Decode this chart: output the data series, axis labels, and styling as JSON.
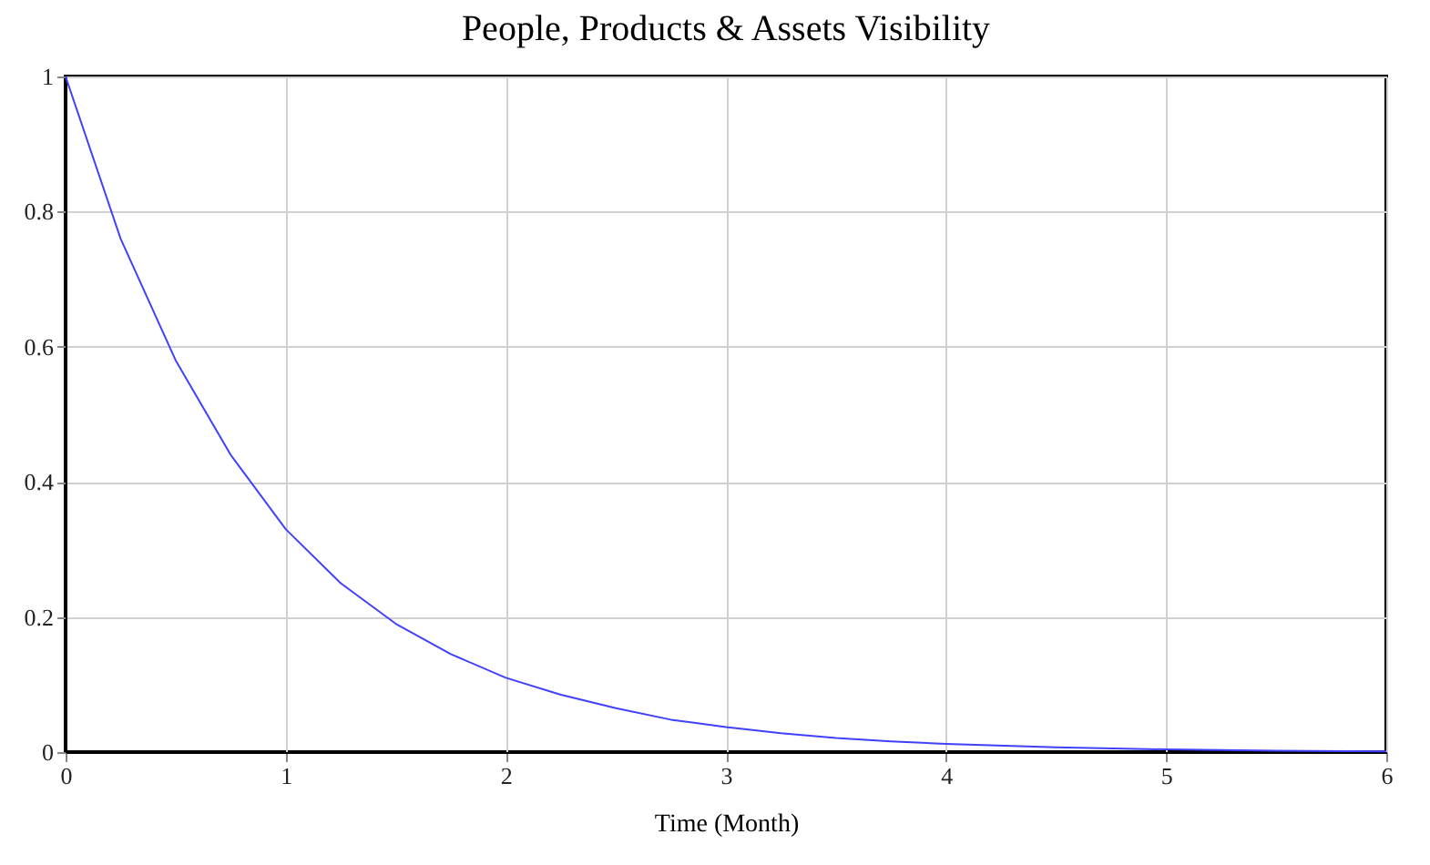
{
  "chart_data": {
    "type": "line",
    "title": "People, Products & Assets Visibility",
    "xlabel": "Time (Month)",
    "x": [
      0,
      0.25,
      0.5,
      0.75,
      1,
      1.25,
      1.5,
      1.75,
      2,
      2.25,
      2.5,
      2.75,
      3,
      3.25,
      3.5,
      3.75,
      4,
      4.5,
      5,
      5.5,
      6
    ],
    "series": [
      {
        "color": "#4040ff",
        "values": [
          1,
          0.76,
          0.58,
          0.44,
          0.33,
          0.25,
          0.19,
          0.145,
          0.11,
          0.085,
          0.065,
          0.048,
          0.037,
          0.028,
          0.021,
          0.016,
          0.012,
          0.007,
          0.004,
          0.002,
          0.001
        ]
      }
    ],
    "xlim": [
      0,
      6
    ],
    "xticks": [
      0,
      1,
      2,
      3,
      4,
      5,
      6
    ],
    "ylim": [
      0,
      1
    ],
    "yticks": [
      0,
      0.2,
      0.4,
      0.6,
      0.8,
      1
    ],
    "grid": true,
    "marker": "none",
    "line_style": "solid"
  }
}
